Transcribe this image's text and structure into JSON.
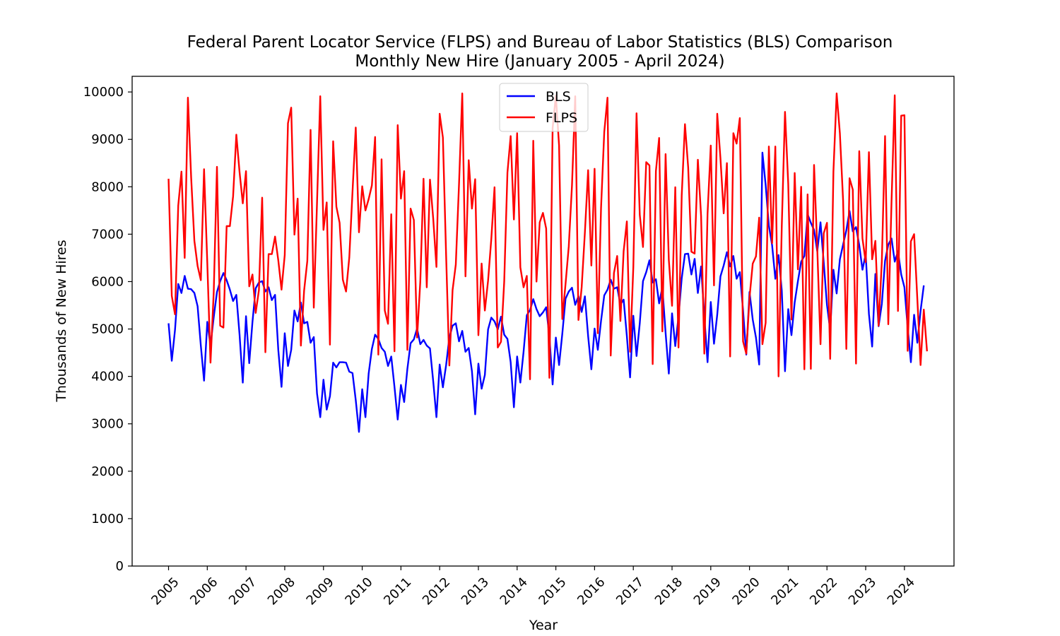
{
  "chart_data": {
    "type": "line",
    "title": "Federal Parent Locator Service (FLPS) and Bureau of Labor Statistics (BLS) Comparison",
    "subtitle": "Monthly New Hire (January 2005 - April 2024)",
    "xlabel": "Year",
    "ylabel": "Thousands of New Hires",
    "x_tick_labels": [
      "2005",
      "2006",
      "2007",
      "2008",
      "2009",
      "2010",
      "2011",
      "2012",
      "2013",
      "2014",
      "2015",
      "2016",
      "2017",
      "2018",
      "2019",
      "2020",
      "2021",
      "2022",
      "2023",
      "2024"
    ],
    "y_tick_labels": [
      "0",
      "1000",
      "2000",
      "3000",
      "4000",
      "5000",
      "6000",
      "7000",
      "8000",
      "9000",
      "10000"
    ],
    "ylim": [
      0,
      10330
    ],
    "xlim": [
      2004.06,
      2025.28
    ],
    "grid": false,
    "legend_position": "top-center",
    "series": [
      {
        "name": "BLS",
        "color": "#0000ff",
        "x_start": 2005.0,
        "x_step": 0.0833333,
        "values": [
          5120,
          4330,
          4980,
          5950,
          5760,
          6120,
          5850,
          5840,
          5760,
          5480,
          4650,
          3910,
          5150,
          4650,
          5250,
          5780,
          6010,
          6180,
          6030,
          5830,
          5590,
          5720,
          4880,
          3870,
          5270,
          4280,
          5150,
          5860,
          5980,
          6010,
          5790,
          5880,
          5610,
          5720,
          4560,
          3780,
          4910,
          4220,
          4560,
          5390,
          5160,
          5560,
          5120,
          5150,
          4710,
          4830,
          3640,
          3140,
          3930,
          3300,
          3580,
          4290,
          4190,
          4300,
          4300,
          4290,
          4100,
          4070,
          3500,
          2830,
          3730,
          3140,
          4060,
          4580,
          4880,
          4790,
          4600,
          4520,
          4220,
          4420,
          3780,
          3090,
          3820,
          3460,
          4160,
          4700,
          4780,
          5010,
          4680,
          4770,
          4650,
          4590,
          3900,
          3140,
          4250,
          3770,
          4240,
          4820,
          5070,
          5120,
          4740,
          4960,
          4520,
          4600,
          4110,
          3200,
          4270,
          3740,
          4030,
          4990,
          5240,
          5160,
          4990,
          5260,
          4880,
          4790,
          4300,
          3350,
          4420,
          3870,
          4520,
          5290,
          5400,
          5630,
          5420,
          5270,
          5350,
          5460,
          4840,
          3830,
          4820,
          4240,
          4900,
          5640,
          5790,
          5870,
          5510,
          5690,
          5360,
          5690,
          4850,
          4150,
          5010,
          4560,
          5170,
          5710,
          5830,
          6040,
          5850,
          5880,
          5520,
          5620,
          4850,
          3980,
          5280,
          4430,
          5120,
          6010,
          6200,
          6450,
          5980,
          6050,
          5540,
          5880,
          4920,
          4060,
          5330,
          4640,
          5260,
          6070,
          6580,
          6590,
          6150,
          6480,
          5760,
          6320,
          5260,
          4300,
          5570,
          4690,
          5300,
          6110,
          6340,
          6620,
          6320,
          6540,
          6060,
          6200,
          5390,
          4460,
          5780,
          5200,
          4820,
          4250,
          8720,
          8040,
          7180,
          6770,
          6060,
          6560,
          5810,
          4110,
          5420,
          4870,
          5560,
          6010,
          6420,
          6540,
          7420,
          7240,
          7090,
          6640,
          7250,
          6400,
          5510,
          4980,
          6250,
          5750,
          6470,
          6780,
          7080,
          7490,
          7060,
          7150,
          6770,
          6250,
          6580,
          5320,
          4630,
          6160,
          5060,
          5530,
          6440,
          6780,
          6910,
          6420,
          6640,
          6150,
          5880,
          5040,
          4300,
          5300,
          4710,
          5380,
          5920
        ]
      },
      {
        "name": "FLPS",
        "color": "#ff0000",
        "x_start": 2005.0,
        "x_step": 0.0833333,
        "values": [
          8170,
          5700,
          5310,
          7600,
          8320,
          6500,
          9880,
          8200,
          6860,
          6330,
          6030,
          8370,
          6400,
          4290,
          5780,
          8420,
          5070,
          5030,
          7170,
          7170,
          7800,
          9100,
          8310,
          7650,
          8330,
          5900,
          6150,
          5340,
          5820,
          7770,
          4510,
          6580,
          6580,
          6950,
          6450,
          5830,
          6560,
          9340,
          9670,
          6990,
          7750,
          4650,
          5810,
          6440,
          9200,
          5450,
          7660,
          9910,
          7090,
          7670,
          4670,
          8960,
          7580,
          7240,
          6040,
          5790,
          6510,
          7900,
          9250,
          7040,
          8010,
          7500,
          7740,
          8030,
          9050,
          4460,
          8580,
          5390,
          5110,
          7420,
          4530,
          9300,
          7750,
          8330,
          4560,
          7540,
          7300,
          4820,
          6000,
          8170,
          5880,
          8150,
          7330,
          6310,
          9540,
          9040,
          6550,
          4230,
          5820,
          6360,
          8060,
          9970,
          6110,
          8560,
          7540,
          8160,
          4870,
          6380,
          5390,
          6020,
          6900,
          7990,
          4610,
          4730,
          6000,
          8300,
          9070,
          7310,
          9130,
          6300,
          5880,
          6120,
          3940,
          8970,
          6000,
          7250,
          7450,
          7120,
          3970,
          9240,
          9920,
          8870,
          5210,
          5950,
          6740,
          8030,
          9910,
          5190,
          5880,
          7040,
          8350,
          6340,
          8380,
          4910,
          7550,
          9160,
          9880,
          4440,
          6180,
          6540,
          5170,
          6640,
          7270,
          4520,
          6300,
          9550,
          7410,
          6730,
          8520,
          8450,
          4260,
          8330,
          9030,
          4950,
          8690,
          6460,
          5490,
          7990,
          4610,
          7820,
          9320,
          8410,
          6630,
          6590,
          8570,
          7380,
          4480,
          7430,
          8870,
          5920,
          9540,
          8600,
          7440,
          8500,
          4420,
          9130,
          8910,
          9450,
          4740,
          4480,
          5660,
          6380,
          6530,
          7350,
          4680,
          5130,
          8850,
          6810,
          8850,
          4000,
          7170,
          9580,
          8060,
          5200,
          8290,
          6260,
          8000,
          4150,
          7840,
          4160,
          8460,
          6690,
          4680,
          7020,
          7240,
          4370,
          8320,
          9970,
          9130,
          7710,
          4580,
          8180,
          7940,
          4270,
          8750,
          6910,
          6410,
          8730,
          6470,
          6860,
          5070,
          6430,
          9070,
          5100,
          7680,
          9930,
          5380,
          9500,
          9510,
          4540,
          6850,
          7000,
          5630,
          4240,
          5410,
          4530
        ]
      }
    ]
  }
}
